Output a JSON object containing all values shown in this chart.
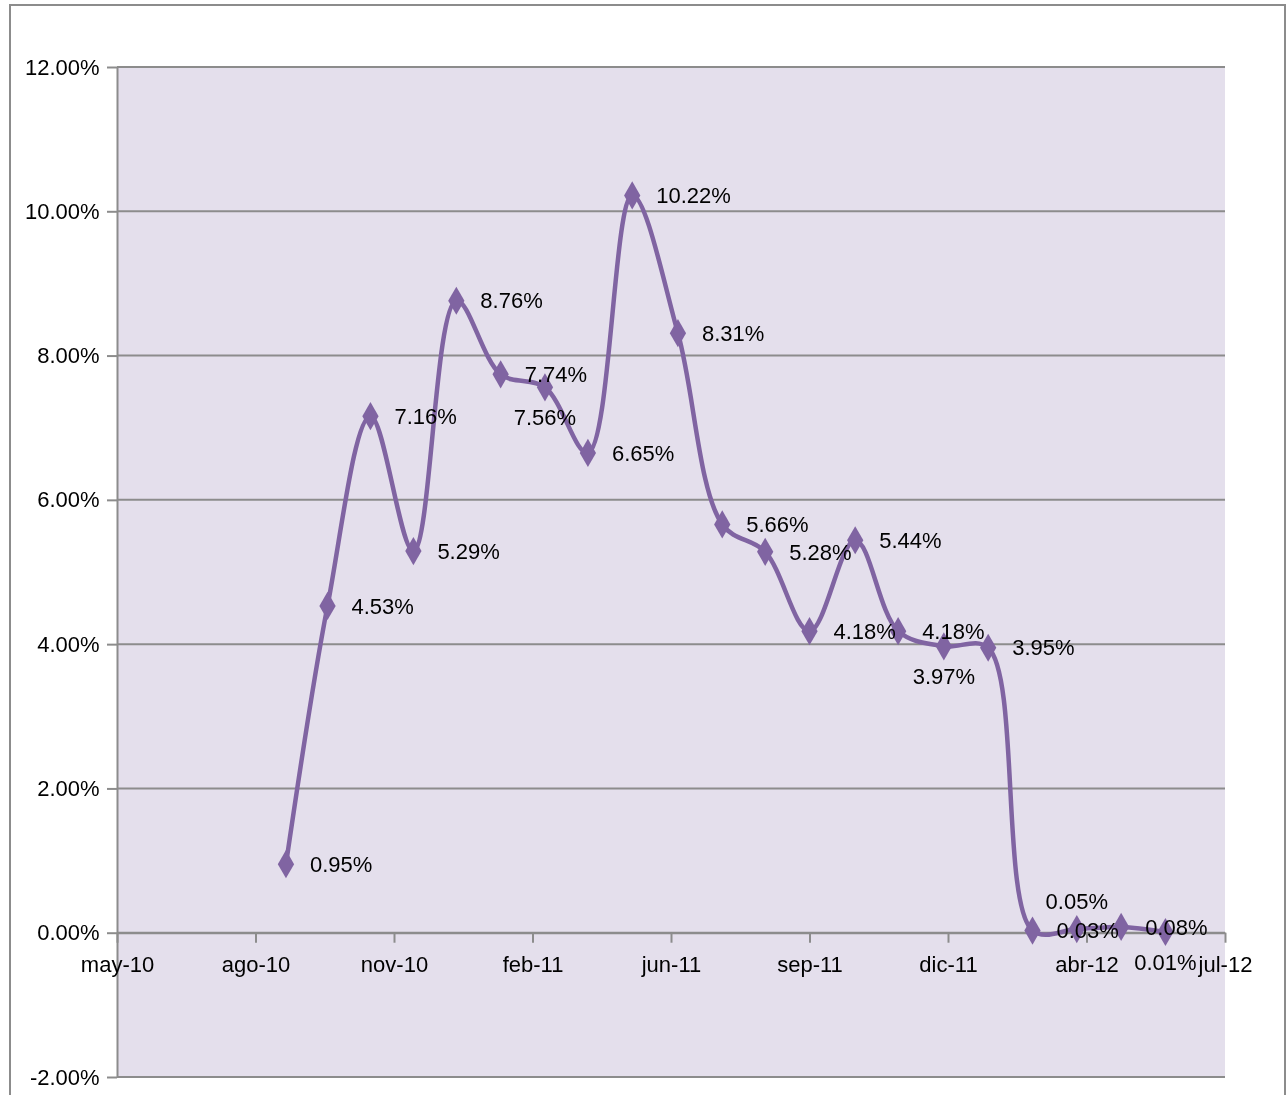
{
  "chart_data": {
    "type": "line",
    "x": [
      "2010-09-01",
      "2010-10-01",
      "2010-11-01",
      "2010-12-02",
      "2011-01-02",
      "2011-02-03",
      "2011-03-07",
      "2011-04-07",
      "2011-05-09",
      "2011-06-11",
      "2011-07-13",
      "2011-08-13",
      "2011-09-14",
      "2011-10-17",
      "2011-11-17",
      "2011-12-20",
      "2012-01-21",
      "2012-02-22",
      "2012-03-25",
      "2012-04-26",
      "2012-05-28"
    ],
    "series": [
      {
        "color": "#8064a2",
        "values": [
          0.95,
          4.53,
          7.16,
          5.29,
          8.76,
          7.74,
          7.56,
          6.65,
          10.22,
          8.31,
          5.66,
          5.28,
          4.18,
          5.44,
          4.18,
          3.97,
          3.95,
          0.03,
          0.05,
          0.08,
          0.01
        ],
        "value_labels": [
          "0.95%",
          "4.53%",
          "7.16%",
          "5.29%",
          "8.76%",
          "7.74%",
          "7.56%",
          "6.65%",
          "10.22%",
          "8.31%",
          "5.66%",
          "5.28%",
          "4.18%",
          "5.44%",
          "4.18%",
          "3.97%",
          "3.95%",
          "0.03%",
          "0.05%",
          "0.08%",
          "0.01%"
        ]
      }
    ],
    "xlim": [
      "2010-05-02",
      "2012-07-10"
    ],
    "xticks": [
      {
        "value": "2010-05-02",
        "label": "may-10"
      },
      {
        "value": "2010-08-10",
        "label": "ago-10"
      },
      {
        "value": "2010-11-18",
        "label": "nov-10"
      },
      {
        "value": "2011-02-26",
        "label": "feb-11"
      },
      {
        "value": "2011-06-06",
        "label": "jun-11"
      },
      {
        "value": "2011-09-14",
        "label": "sep-11"
      },
      {
        "value": "2011-12-23",
        "label": "dic-11"
      },
      {
        "value": "2012-04-01",
        "label": "abr-12"
      },
      {
        "value": "2012-07-10",
        "label": "jul-12"
      }
    ],
    "ylim": [
      -2,
      12
    ],
    "yticks": [
      {
        "value": -2,
        "label": "-2.00%"
      },
      {
        "value": 0,
        "label": "0.00%"
      },
      {
        "value": 2,
        "label": "2.00%"
      },
      {
        "value": 4,
        "label": "4.00%"
      },
      {
        "value": 6,
        "label": "6.00%"
      },
      {
        "value": 8,
        "label": "8.00%"
      },
      {
        "value": 10,
        "label": "10.00%"
      },
      {
        "value": 12,
        "label": "12.00%"
      }
    ],
    "grid": "y",
    "marker": "diamond",
    "line_style": "solid"
  }
}
